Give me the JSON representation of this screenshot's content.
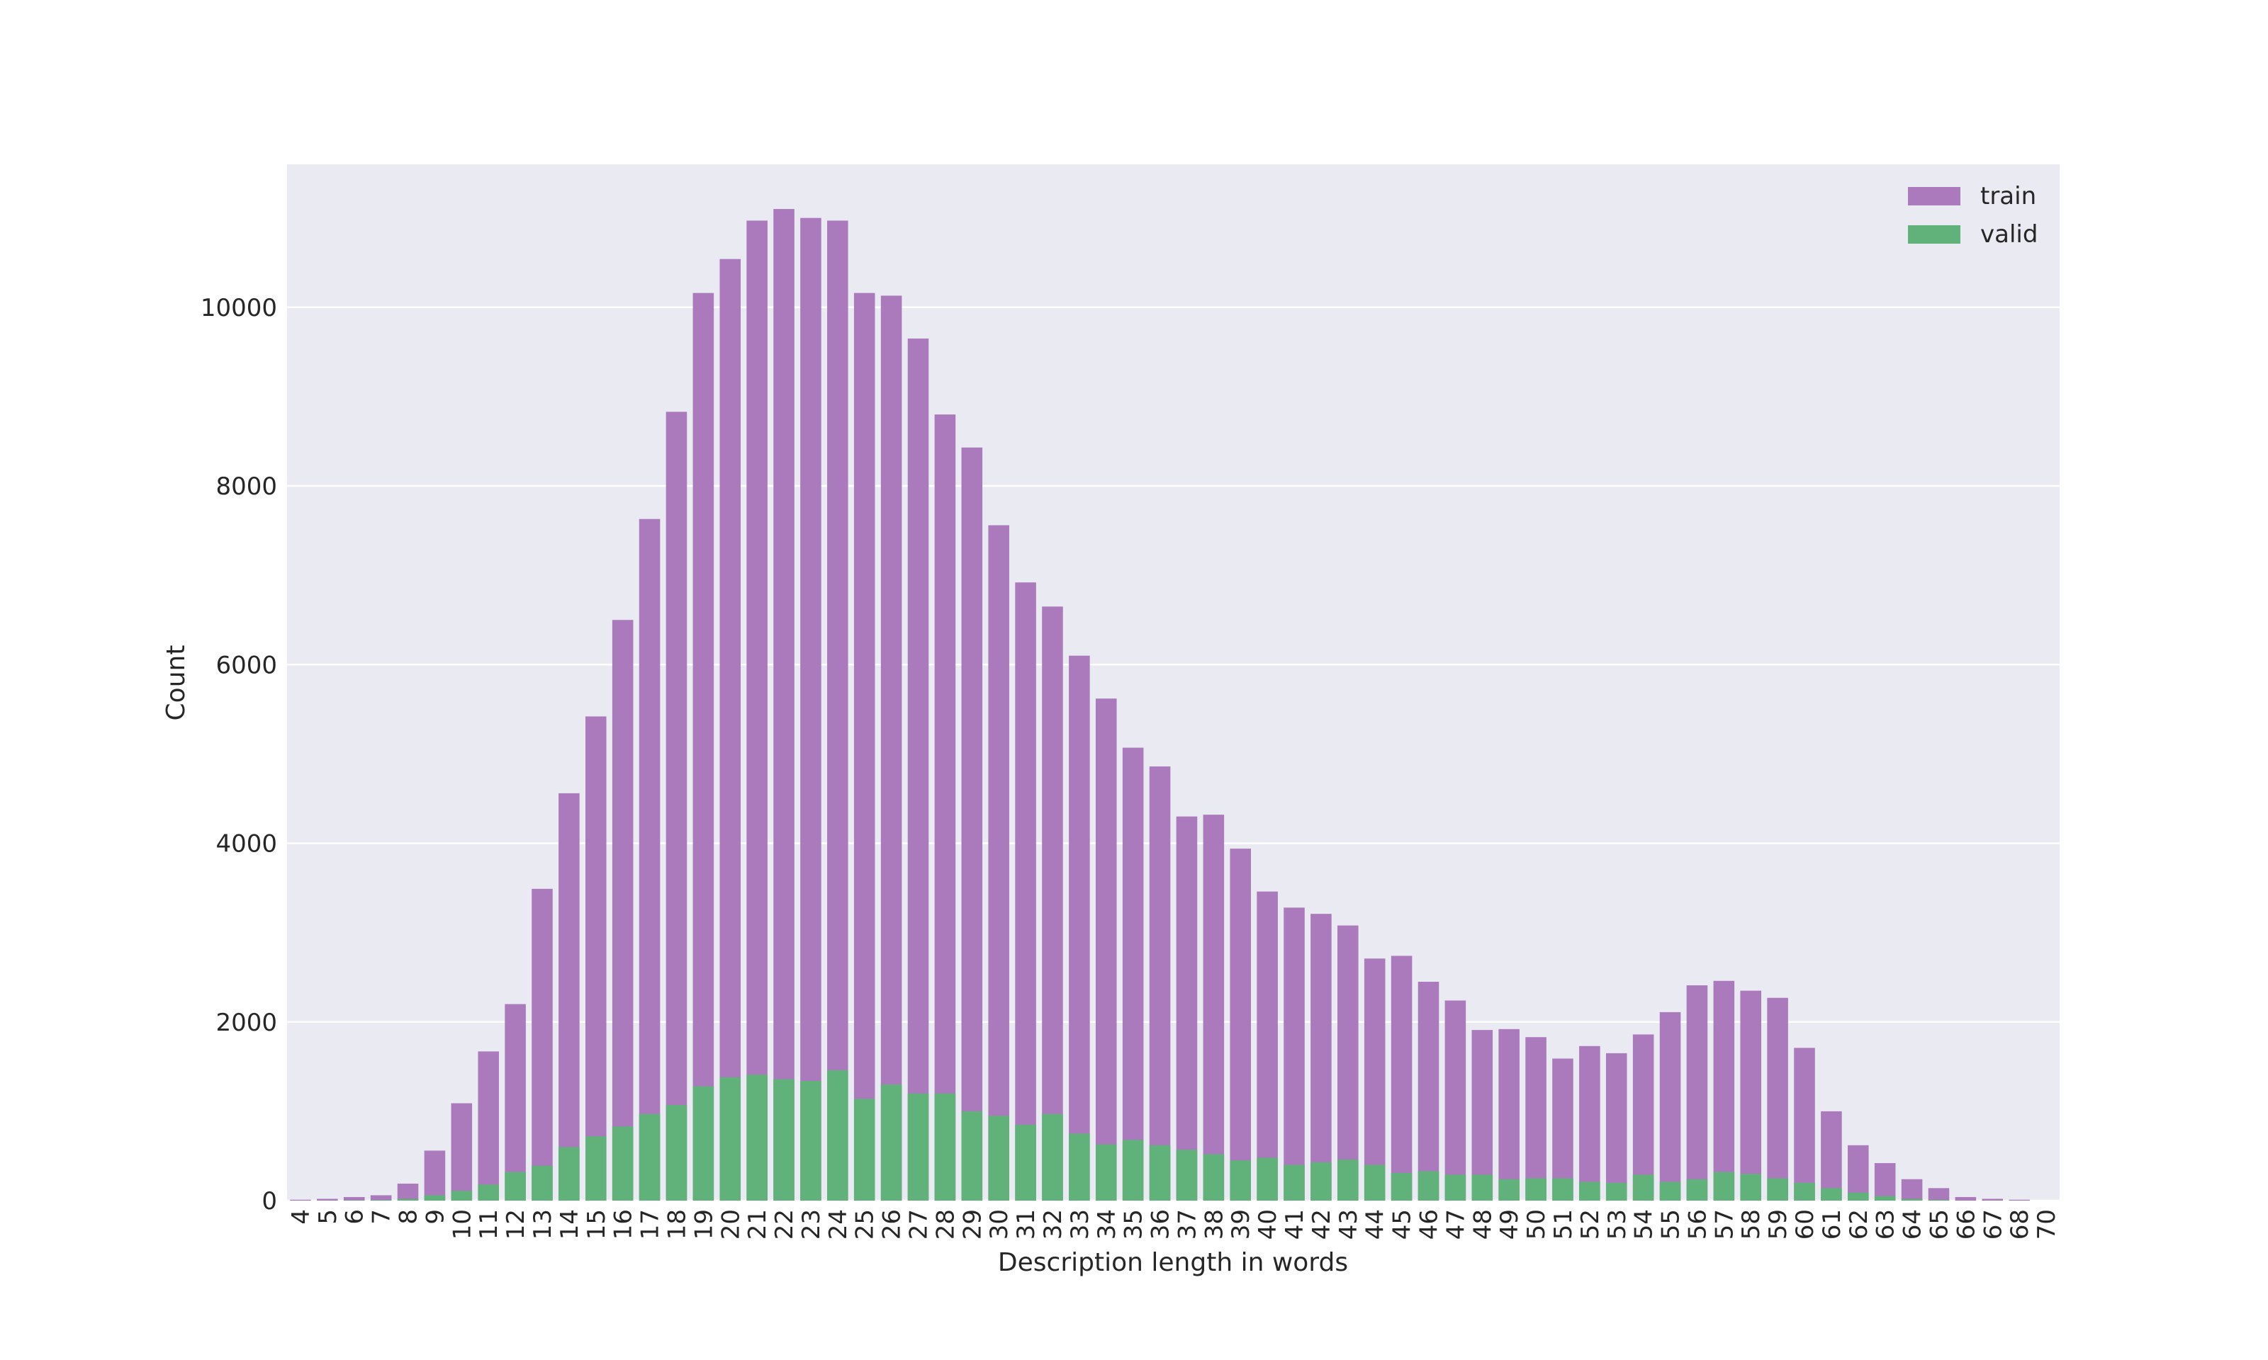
{
  "chart_data": {
    "type": "bar",
    "xlabel": "Description length in words",
    "ylabel": "Count",
    "ylim": [
      0,
      11600
    ],
    "y_ticks": [
      0,
      2000,
      4000,
      6000,
      8000,
      10000
    ],
    "grid": true,
    "legend_position": "top-right",
    "bar_mode": "overlay",
    "categories": [
      "4",
      "5",
      "6",
      "7",
      "8",
      "9",
      "10",
      "11",
      "12",
      "13",
      "14",
      "15",
      "16",
      "17",
      "18",
      "19",
      "20",
      "21",
      "22",
      "23",
      "24",
      "25",
      "26",
      "27",
      "28",
      "29",
      "30",
      "31",
      "32",
      "33",
      "34",
      "35",
      "36",
      "37",
      "38",
      "39",
      "40",
      "41",
      "42",
      "43",
      "44",
      "45",
      "46",
      "47",
      "48",
      "49",
      "50",
      "51",
      "52",
      "53",
      "54",
      "55",
      "56",
      "57",
      "58",
      "59",
      "60",
      "61",
      "62",
      "63",
      "64",
      "65",
      "66",
      "67",
      "68",
      "70"
    ],
    "series": [
      {
        "name": "train",
        "color": "#AB7ABD",
        "values": [
          10,
          20,
          40,
          60,
          190,
          560,
          1090,
          1670,
          2200,
          3490,
          4560,
          5420,
          6500,
          7630,
          8830,
          10160,
          10540,
          10970,
          11100,
          11000,
          10970,
          10160,
          10130,
          9650,
          8800,
          8430,
          7560,
          6920,
          6650,
          6100,
          5620,
          5070,
          4860,
          4300,
          4320,
          3940,
          3460,
          3280,
          3210,
          3080,
          2710,
          2740,
          2450,
          2240,
          1910,
          1920,
          1830,
          1590,
          1730,
          1650,
          1860,
          2110,
          2410,
          2460,
          2350,
          2270,
          1710,
          1000,
          620,
          420,
          240,
          140,
          40,
          20,
          10,
          0
        ]
      },
      {
        "name": "valid",
        "color": "#60B27A",
        "values": [
          0,
          0,
          5,
          8,
          20,
          60,
          110,
          180,
          320,
          390,
          600,
          720,
          830,
          970,
          1070,
          1280,
          1380,
          1410,
          1360,
          1340,
          1460,
          1140,
          1300,
          1200,
          1200,
          1000,
          950,
          850,
          970,
          750,
          630,
          680,
          620,
          570,
          520,
          450,
          480,
          400,
          430,
          460,
          400,
          310,
          330,
          290,
          290,
          240,
          250,
          250,
          210,
          200,
          290,
          210,
          240,
          320,
          300,
          250,
          200,
          140,
          90,
          50,
          20,
          10,
          0,
          0,
          0,
          0
        ]
      }
    ]
  }
}
